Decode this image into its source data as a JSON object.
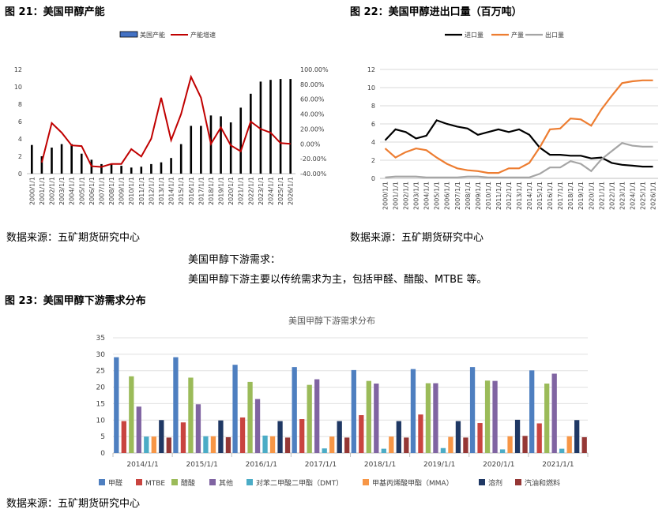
{
  "fig21": {
    "title": "图 21：美国甲醇产能",
    "source": "数据来源：五矿期货研究中心"
  },
  "fig22": {
    "title": "图 22：美国甲醇进出口量（百万吨）",
    "source": "数据来源：五矿期货研究中心"
  },
  "text": {
    "heading": "美国甲醇下游需求：",
    "body": "美国甲醇下游主要以传统需求为主，包括甲醛、醋酸、MTBE 等。"
  },
  "fig23": {
    "title": "图 23：美国甲醇下游需求分布",
    "source": "数据来源：五矿期货研究中心"
  },
  "chart_data": [
    {
      "type": "bar",
      "categories": [
        "2000/1/1",
        "2001/1/1",
        "2002/1/1",
        "2003/1/1",
        "2004/1/1",
        "2005/1/1",
        "2006/1/1",
        "2007/1/1",
        "2008/1/1",
        "2009/1/1",
        "2010/1/1",
        "2011/1/1",
        "2012/1/1",
        "2013/1/1",
        "2014/1/1",
        "2015/1/1",
        "2016/1/1",
        "2017/1/1",
        "2018/1/1",
        "2019/1/1",
        "2020/1/1",
        "2021/1/1",
        "2022/1/1",
        "2023/1/1",
        "2024/1/1",
        "2025/1/1",
        "2026/1/1"
      ],
      "series": [
        {
          "name": "美国产能",
          "axis": "left",
          "kind": "bar",
          "values": [
            3.3,
            2.0,
            3.0,
            3.4,
            3.4,
            2.3,
            1.6,
            1.1,
            1.1,
            0.9,
            0.7,
            0.8,
            1.1,
            1.3,
            1.8,
            3.4,
            5.5,
            5.5,
            6.7,
            6.6,
            5.9,
            7.6,
            9.2,
            10.6,
            10.8,
            10.9,
            10.9
          ]
        },
        {
          "name": "产能增速",
          "axis": "right",
          "kind": "line",
          "values": [
            null,
            -25,
            28,
            15,
            -2,
            -3,
            -30,
            -31,
            -27,
            -27,
            -7,
            -17,
            7,
            62,
            5,
            40,
            90,
            62,
            0,
            22,
            -2,
            -10,
            30,
            20,
            15,
            1,
            0
          ]
        }
      ],
      "y_left": {
        "ticks": [
          "0",
          "2",
          "4",
          "6",
          "8",
          "10",
          "12"
        ],
        "range": [
          0,
          12
        ]
      },
      "y_right": {
        "ticks": [
          "-40.00%",
          "-20.00%",
          "0.00%",
          "20.00%",
          "40.00%",
          "60.00%",
          "80.00%",
          "100.00%"
        ],
        "range": [
          -40,
          100
        ]
      },
      "legend": "top",
      "colors": {
        "bar": "#000000",
        "line": "#c00000"
      }
    },
    {
      "type": "line",
      "categories": [
        "2000/1/1",
        "2001/1/1",
        "2002/1/1",
        "2003/1/1",
        "2004/1/1",
        "2005/1/1",
        "2006/1/1",
        "2007/1/1",
        "2008/1/1",
        "2009/1/1",
        "2010/1/1",
        "2011/1/1",
        "2012/1/1",
        "2013/1/1",
        "2014/1/1",
        "2015/1/1",
        "2016/1/1",
        "2017/1/1",
        "2018/1/1",
        "2019/1/1",
        "2020/1/1",
        "2021/1/1",
        "2022/1/1",
        "2023/1/1",
        "2024/1/1",
        "2025/1/1",
        "2026/1/1"
      ],
      "series": [
        {
          "name": "进口量",
          "color": "#000000",
          "values": [
            4.2,
            5.4,
            5.1,
            4.4,
            4.7,
            6.4,
            6.0,
            5.7,
            5.5,
            4.8,
            5.1,
            5.4,
            5.1,
            5.4,
            4.8,
            3.4,
            2.6,
            2.6,
            2.5,
            2.5,
            2.2,
            2.3,
            1.7,
            1.5,
            1.4,
            1.3,
            1.3
          ]
        },
        {
          "name": "产量",
          "color": "#ed7d31",
          "values": [
            3.3,
            2.3,
            2.9,
            3.3,
            3.1,
            2.3,
            1.6,
            1.1,
            0.9,
            0.8,
            0.6,
            0.6,
            1.1,
            1.1,
            1.7,
            3.4,
            5.4,
            5.5,
            6.6,
            6.5,
            5.8,
            7.6,
            9.1,
            10.5,
            10.7,
            10.8,
            10.8
          ]
        },
        {
          "name": "出口量",
          "color": "#a5a5a5",
          "values": [
            0.1,
            0.2,
            0.2,
            0.2,
            0.1,
            0.1,
            0.1,
            0.1,
            0.2,
            0.2,
            0.1,
            0.1,
            0.1,
            0.1,
            0.1,
            0.5,
            1.2,
            1.2,
            1.9,
            1.6,
            0.8,
            2.1,
            3.0,
            3.9,
            3.6,
            3.5,
            3.5
          ]
        }
      ],
      "y": {
        "ticks": [
          "0",
          "2",
          "4",
          "6",
          "8",
          "10",
          "12"
        ],
        "range": [
          0,
          12
        ]
      },
      "legend": "top"
    },
    {
      "type": "bar",
      "title": "美国甲醇下游需求分布",
      "categories": [
        "2014/1/1",
        "2015/1/1",
        "2016/1/1",
        "2017/1/1",
        "2018/1/1",
        "2019/1/1",
        "2020/1/1",
        "2021/1/1"
      ],
      "series": [
        {
          "name": "甲醛",
          "color": "#4e7fc0",
          "values": [
            29.1,
            29.1,
            26.8,
            26.1,
            25.2,
            25.5,
            26.1,
            25.1
          ]
        },
        {
          "name": "MTBE",
          "color": "#c9443f",
          "values": [
            9.7,
            9.3,
            10.8,
            10.3,
            11.5,
            11.7,
            9.1,
            9.0
          ]
        },
        {
          "name": "醋酸",
          "color": "#9bbb59",
          "values": [
            23.3,
            22.9,
            21.6,
            20.7,
            21.9,
            21.2,
            22.0,
            21.1
          ]
        },
        {
          "name": "其他",
          "color": "#8064a2",
          "values": [
            14.1,
            14.8,
            16.4,
            22.4,
            21.1,
            21.2,
            21.9,
            24.1
          ]
        },
        {
          "name": "对苯二甲酸二甲酯（DMT）",
          "color": "#4bacc6",
          "values": [
            5.0,
            5.1,
            5.3,
            1.4,
            1.3,
            1.5,
            1.1,
            1.3
          ]
        },
        {
          "name": "甲基丙烯酸甲酯（MMA）",
          "color": "#f79646",
          "values": [
            5.0,
            5.1,
            5.1,
            5.0,
            5.0,
            4.9,
            5.1,
            5.1
          ]
        },
        {
          "name": "溶剂",
          "color": "#1f3864",
          "values": [
            10.0,
            9.9,
            9.7,
            9.7,
            9.7,
            9.7,
            10.1,
            10.0
          ]
        },
        {
          "name": "汽油和燃料",
          "color": "#953735",
          "values": [
            4.7,
            4.8,
            4.7,
            4.7,
            4.7,
            4.7,
            5.2,
            4.8
          ]
        }
      ],
      "y": {
        "ticks": [
          "0",
          "5",
          "10",
          "15",
          "20",
          "25",
          "30",
          "35"
        ],
        "range": [
          0,
          35
        ]
      },
      "legend": "bottom"
    }
  ]
}
